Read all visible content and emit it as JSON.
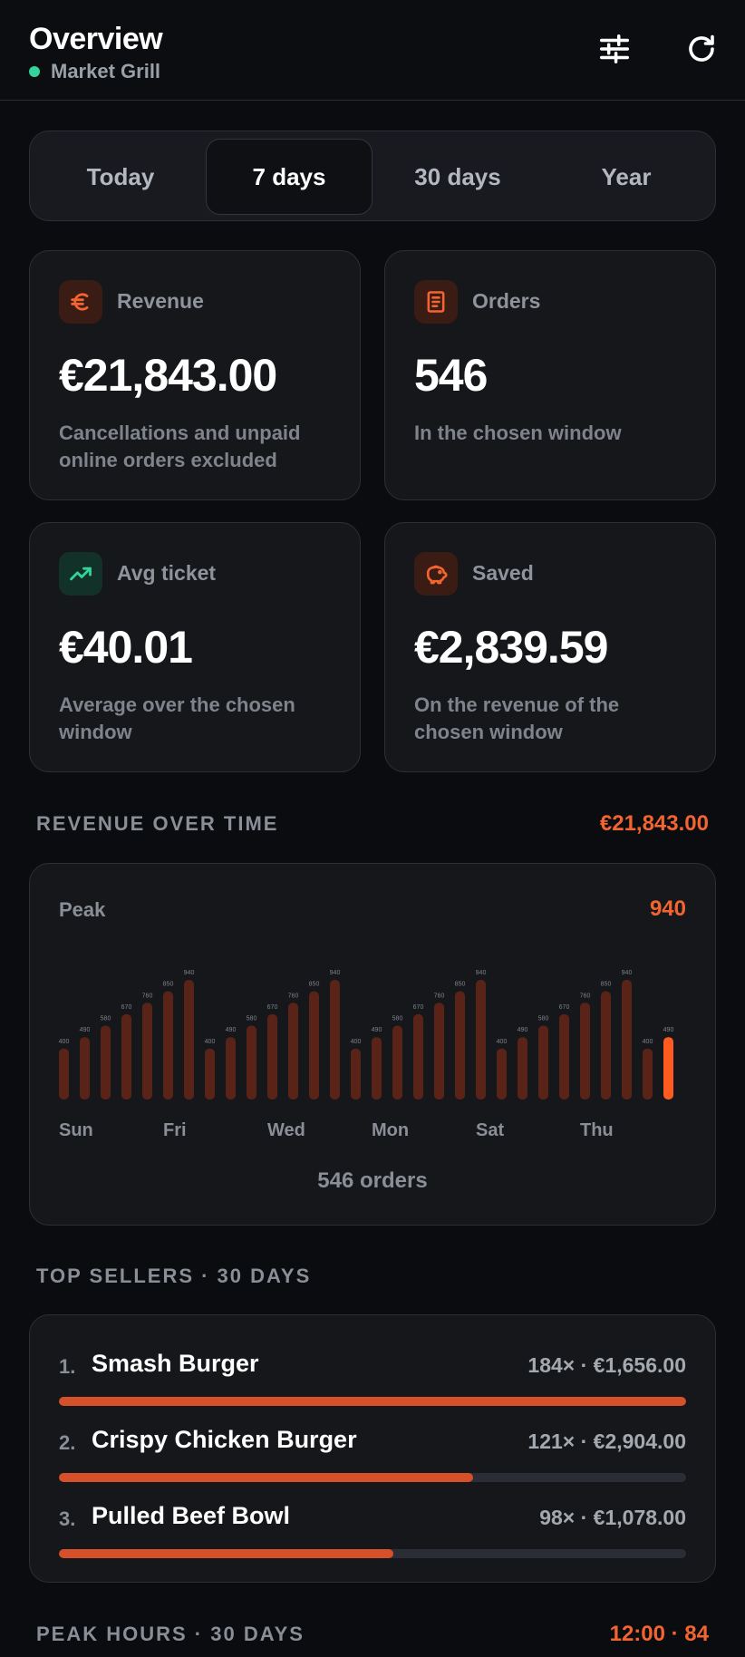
{
  "header": {
    "title": "Overview",
    "subtitle": "Market Grill",
    "status_color": "#34d399",
    "actions": [
      {
        "name": "filter",
        "icon": "sliders-icon"
      },
      {
        "name": "refresh",
        "icon": "refresh-icon"
      }
    ]
  },
  "range_tabs": {
    "items": [
      "Today",
      "7 days",
      "30 days",
      "Year"
    ],
    "active": "7 days"
  },
  "cards": {
    "revenue": {
      "icon": "euro-icon",
      "label": "Revenue",
      "value": "€21,843.00",
      "desc": "Cancellations and unpaid online orders excluded"
    },
    "orders": {
      "icon": "receipt-icon",
      "label": "Orders",
      "value": "546",
      "desc": "In the chosen window"
    },
    "avg_ticket": {
      "icon": "trending-up-icon",
      "label": "Avg ticket",
      "value": "€40.01",
      "desc": "Average over the chosen window"
    },
    "saved": {
      "icon": "piggy-bank-icon",
      "label": "Saved",
      "value": "€2,839.59",
      "desc": "On the revenue of the chosen window"
    }
  },
  "revenue_section": {
    "heading": "REVENUE OVER TIME",
    "total": "€21,843.00",
    "peak_label": "Peak",
    "peak_value": "940",
    "footer": "546 orders"
  },
  "chart_data": {
    "type": "bar",
    "values": [
      400,
      490,
      580,
      670,
      760,
      850,
      940,
      400,
      490,
      580,
      670,
      760,
      850,
      940,
      400,
      490,
      580,
      670,
      760,
      850,
      940,
      400,
      490,
      580,
      670,
      760,
      850,
      940,
      400,
      490
    ],
    "x_labels": [
      "Sun",
      "Fri",
      "Wed",
      "Mon",
      "Sat",
      "Thu"
    ],
    "highlight_last": true,
    "bar_color": "#5a2317",
    "highlight_color": "#ff5a1f",
    "grid": false
  },
  "top_sellers": {
    "heading": "TOP SELLERS · 30 DAYS",
    "items": [
      {
        "rank": "1.",
        "name": "Smash Burger",
        "stats": "184× · €1,656.00",
        "share": 1.0
      },
      {
        "rank": "2.",
        "name": "Crispy Chicken Burger",
        "stats": "121× · €2,904.00",
        "share": 0.66
      },
      {
        "rank": "3.",
        "name": "Pulled Beef Bowl",
        "stats": "98× · €1,078.00",
        "share": 0.533
      }
    ]
  },
  "peak_hours": {
    "heading": "PEAK HOURS · 30 DAYS",
    "value": "12:00 · 84"
  },
  "colors": {
    "accent": "#f26430",
    "background": "#0b0c0f",
    "card": "#16171b"
  }
}
